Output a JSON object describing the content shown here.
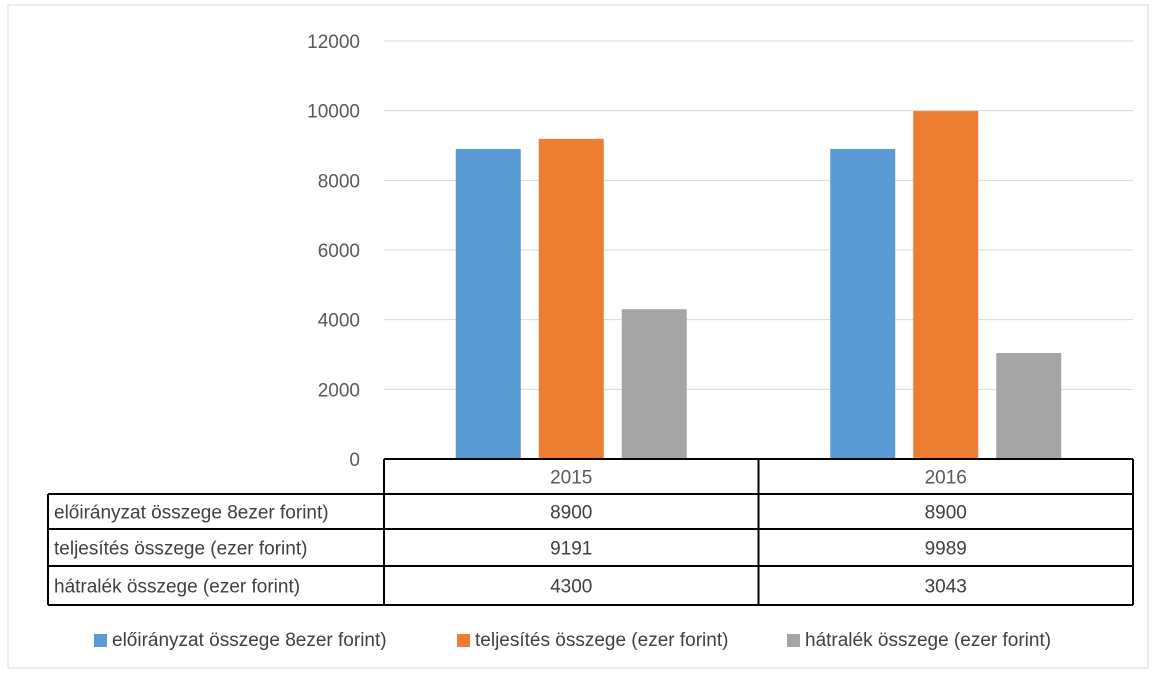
{
  "chart_data": {
    "type": "bar",
    "categories": [
      "2015",
      "2016"
    ],
    "series": [
      {
        "name": "előirányzat összege 8ezer forint)",
        "values": [
          8900,
          8900
        ],
        "color": "#5B9BD5",
        "value_labels": [
          "8900",
          "8900"
        ]
      },
      {
        "name": "teljesítés összege (ezer forint)",
        "values": [
          9191,
          9989
        ],
        "color": "#ED7D31",
        "value_labels": [
          "9191",
          "9989"
        ]
      },
      {
        "name": "hátralék összege (ezer forint)",
        "values": [
          4300,
          3043
        ],
        "color": "#A5A5A5",
        "value_labels": [
          "4300",
          "3043"
        ]
      }
    ],
    "ylim": [
      0,
      12000
    ],
    "yticks": [
      "0",
      "2000",
      "4000",
      "6000",
      "8000",
      "10000",
      "12000"
    ],
    "grid": true,
    "data_table": true,
    "legend_position": "bottom",
    "title": "",
    "xlabel": "",
    "ylabel": ""
  }
}
